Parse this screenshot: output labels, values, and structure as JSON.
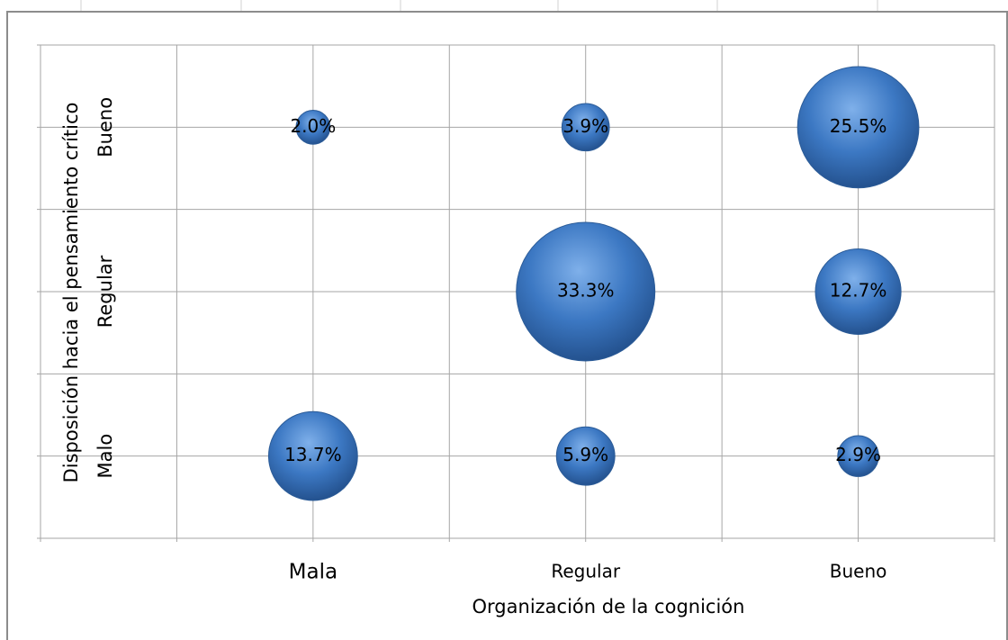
{
  "chart_data": {
    "type": "bubble",
    "x_label": "Organización de la cognición",
    "y_label": "Disposición hacia el pensamiento crítico",
    "x_categories": [
      "Mala",
      "Regular",
      "Bueno"
    ],
    "y_categories": [
      "Malo",
      "Regular",
      "Bueno"
    ],
    "x": [
      "Mala",
      "Mala",
      "Regular",
      "Regular",
      "Regular",
      "Bueno",
      "Bueno",
      "Bueno"
    ],
    "y": [
      "Malo",
      "Bueno",
      "Malo",
      "Regular",
      "Bueno",
      "Malo",
      "Regular",
      "Bueno"
    ],
    "values": [
      13.7,
      2,
      5.9,
      33.3,
      3.9,
      2.9,
      12.7,
      25.5
    ],
    "value_labels": [
      "13.7%",
      "2.0%",
      "5.9%",
      "33.3%",
      "3.9%",
      "2.9%",
      "12.7%",
      "25.5%"
    ],
    "color": "#3c78c3",
    "grid": true
  }
}
